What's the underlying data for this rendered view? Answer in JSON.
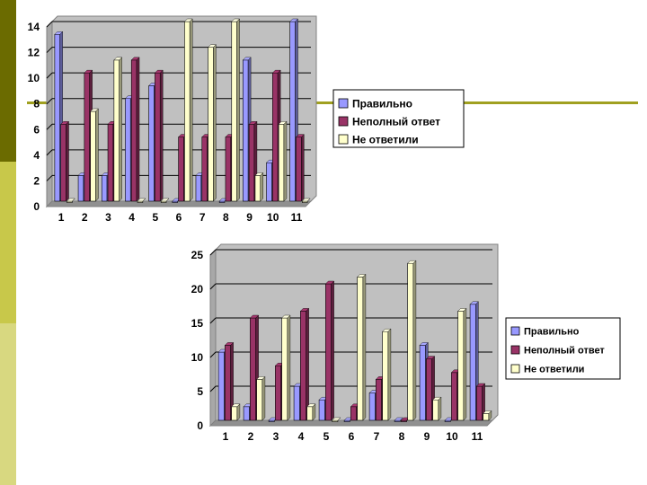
{
  "colors": {
    "sidebar_dark": "#6b6b00",
    "sidebar_mid": "#c8c84a",
    "sidebar_light": "#d8d880",
    "accent_line": "#a0a020",
    "plot_bg": "#c0c0c0",
    "series": [
      "#9999ff",
      "#993366",
      "#ffffcc"
    ]
  },
  "chart_data": [
    {
      "type": "bar",
      "categories": [
        "1",
        "2",
        "3",
        "4",
        "5",
        "6",
        "7",
        "8",
        "9",
        "10",
        "11"
      ],
      "series": [
        {
          "name": "Правильно",
          "values": [
            13,
            2,
            2,
            8,
            9,
            0,
            2,
            0,
            11,
            3,
            14
          ]
        },
        {
          "name": "Неполный ответ",
          "values": [
            6,
            10,
            6,
            11,
            10,
            5,
            5,
            5,
            6,
            10,
            5
          ]
        },
        {
          "name": "Не ответили",
          "values": [
            0,
            7,
            11,
            0,
            0,
            14,
            12,
            14,
            2,
            6,
            0
          ]
        }
      ],
      "ylim": [
        0,
        14
      ],
      "yticks": [
        "0",
        "2",
        "4",
        "6",
        "8",
        "10",
        "12",
        "14"
      ],
      "grid": true,
      "legend": "right"
    },
    {
      "type": "bar",
      "categories": [
        "1",
        "2",
        "3",
        "4",
        "5",
        "6",
        "7",
        "8",
        "9",
        "10",
        "11"
      ],
      "series": [
        {
          "name": "Правильно",
          "values": [
            10,
            2,
            0,
            5,
            3,
            0,
            4,
            0,
            11,
            0,
            17
          ]
        },
        {
          "name": "Неполный ответ",
          "values": [
            11,
            15,
            8,
            16,
            20,
            2,
            6,
            0,
            9,
            7,
            5
          ]
        },
        {
          "name": "Не ответили",
          "values": [
            2,
            6,
            15,
            2,
            0,
            21,
            13,
            23,
            3,
            16,
            1
          ]
        }
      ],
      "ylim": [
        0,
        25
      ],
      "yticks": [
        "0",
        "5",
        "10",
        "15",
        "20",
        "25"
      ],
      "grid": true,
      "legend": "right"
    }
  ]
}
